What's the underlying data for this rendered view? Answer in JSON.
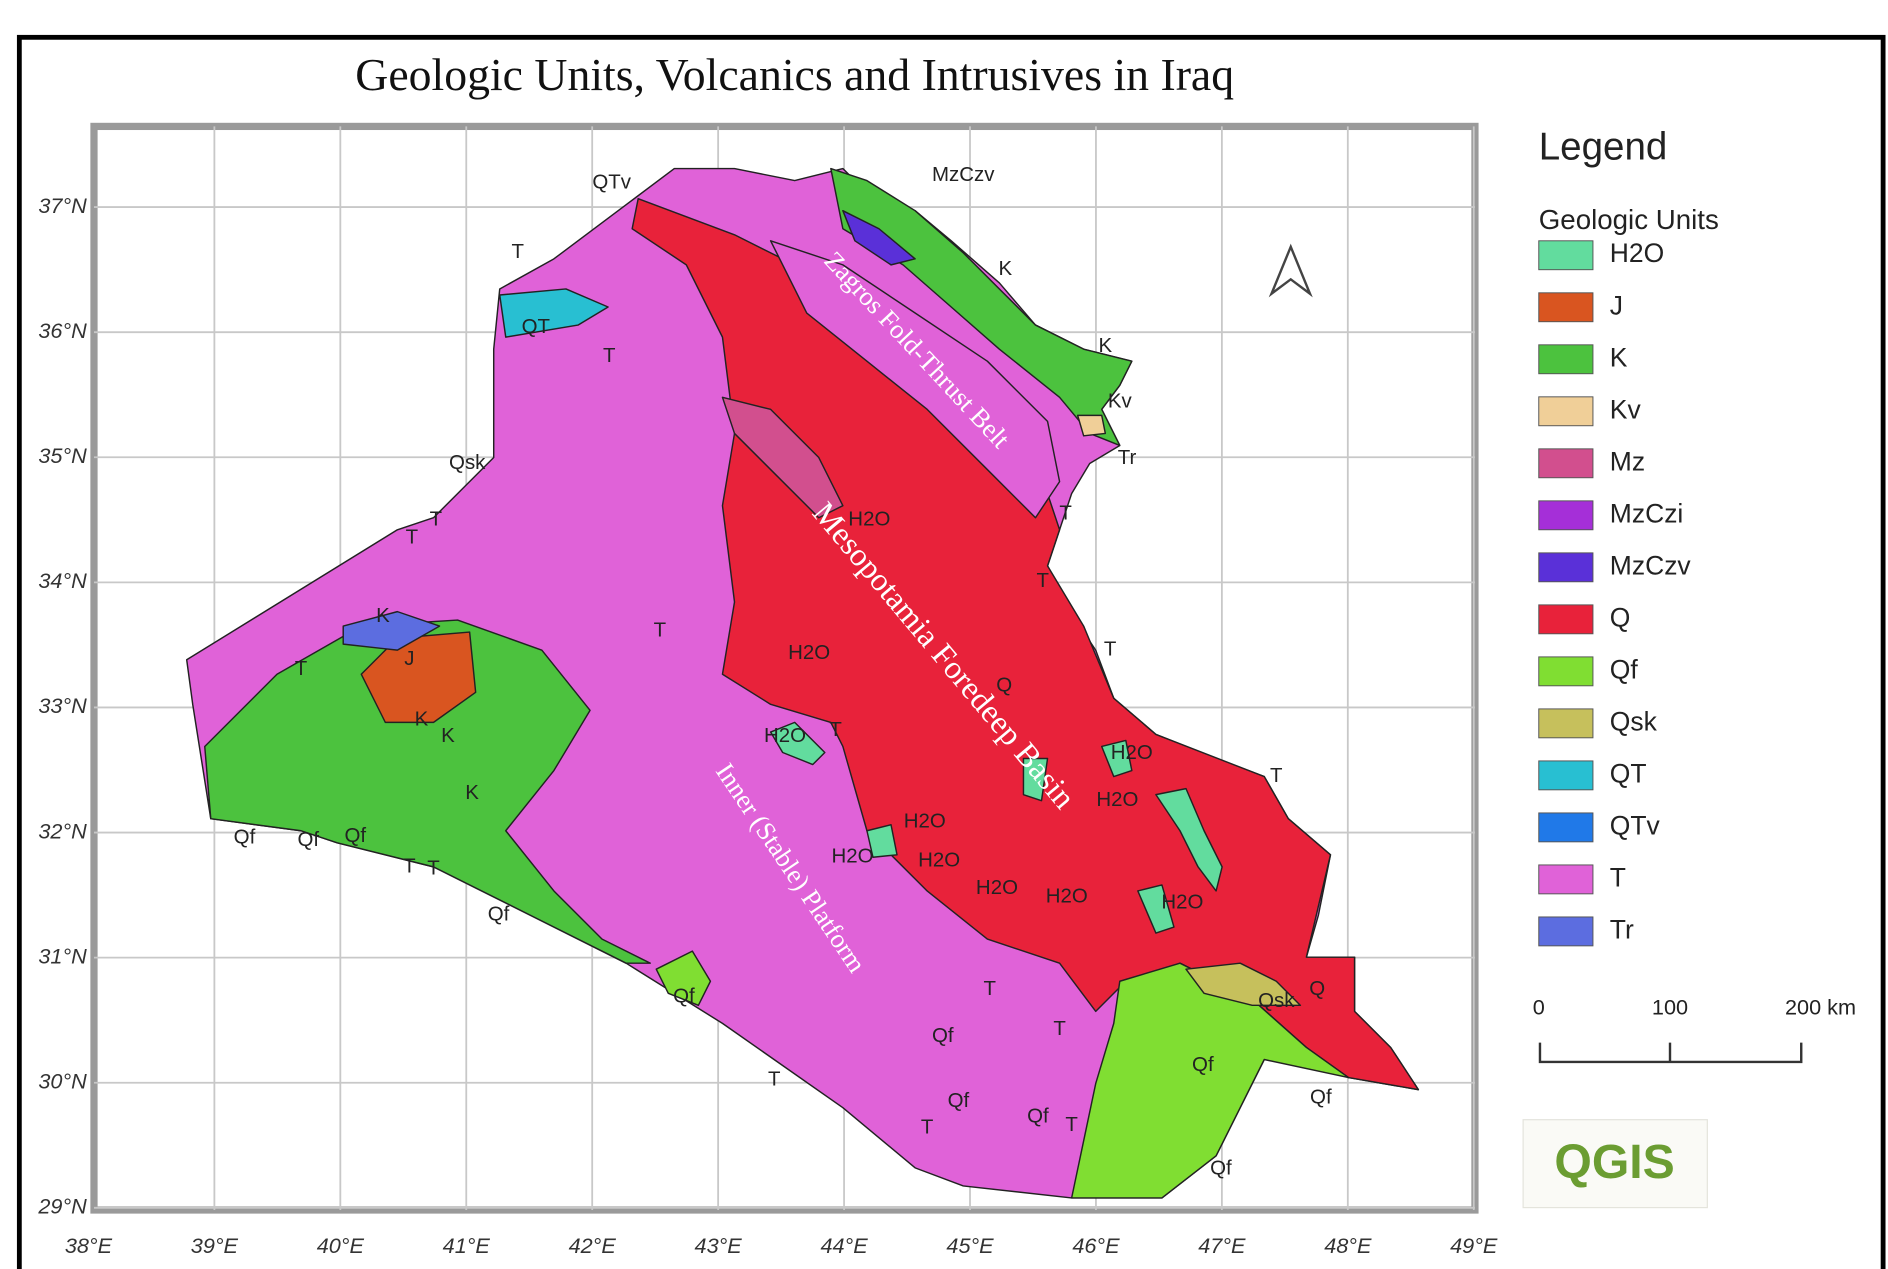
{
  "title": "Geologic Units, Volcanics and Intrusives in Iraq",
  "map": {
    "longitude_ticks": [
      {
        "value": 38,
        "label": "38°E"
      },
      {
        "value": 39,
        "label": "39°E"
      },
      {
        "value": 40,
        "label": "40°E"
      },
      {
        "value": 41,
        "label": "41°E"
      },
      {
        "value": 42,
        "label": "42°E"
      },
      {
        "value": 43,
        "label": "43°E"
      },
      {
        "value": 44,
        "label": "44°E"
      },
      {
        "value": 45,
        "label": "45°E"
      },
      {
        "value": 46,
        "label": "46°E"
      },
      {
        "value": 47,
        "label": "47°E"
      },
      {
        "value": 48,
        "label": "48°E"
      },
      {
        "value": 49,
        "label": "49°E"
      }
    ],
    "latitude_ticks": [
      {
        "value": 29,
        "label": "29°N"
      },
      {
        "value": 30,
        "label": "30°N"
      },
      {
        "value": 31,
        "label": "31°N"
      },
      {
        "value": 32,
        "label": "32°N"
      },
      {
        "value": 33,
        "label": "33°N"
      },
      {
        "value": 34,
        "label": "34°N"
      },
      {
        "value": 35,
        "label": "35°N"
      },
      {
        "value": 36,
        "label": "36°N"
      },
      {
        "value": 37,
        "label": "37°N"
      }
    ],
    "region_labels": [
      "Zagros Fold-Thrust Belt",
      "Mesopotamia Foredeep Basin",
      "Inner (Stable) Platform"
    ],
    "unit_labels": [
      "QTv",
      "MzCzv",
      "T",
      "QT",
      "T",
      "Qsk",
      "T",
      "T",
      "K",
      "K",
      "Kv",
      "Tr",
      "T",
      "T",
      "H2O",
      "T",
      "H2O",
      "Q",
      "T",
      "H2O",
      "T",
      "H2O",
      "H2O",
      "T",
      "H2O",
      "H2O",
      "H2O",
      "H2O",
      "H2O",
      "H2O",
      "K",
      "K",
      "K",
      "J",
      "T",
      "K",
      "Qf",
      "Qf",
      "Qf",
      "T",
      "T",
      "Qf",
      "Qf",
      "Qf",
      "Qf",
      "Qf",
      "Qf",
      "Qf",
      "Qf",
      "Qsk",
      "Q",
      "T",
      "T",
      "T",
      "T",
      "T"
    ]
  },
  "legend": {
    "title": "Legend",
    "subtitle": "Geologic Units",
    "items": [
      {
        "name": "H2O",
        "color": "#62dc9e"
      },
      {
        "name": "J",
        "color": "#d95520"
      },
      {
        "name": "K",
        "color": "#4cc23e"
      },
      {
        "name": "Kv",
        "color": "#f0cf98"
      },
      {
        "name": "Mz",
        "color": "#d24f8e"
      },
      {
        "name": "MzCzi",
        "color": "#a52fd8"
      },
      {
        "name": "MzCzv",
        "color": "#5a30d8"
      },
      {
        "name": "Q",
        "color": "#e8223a"
      },
      {
        "name": "Qf",
        "color": "#80de32"
      },
      {
        "name": "Qsk",
        "color": "#c6c05c"
      },
      {
        "name": "QT",
        "color": "#28bfd2"
      },
      {
        "name": "QTv",
        "color": "#2079e8"
      },
      {
        "name": "T",
        "color": "#e062d8"
      },
      {
        "name": "Tr",
        "color": "#5c6de0"
      }
    ]
  },
  "scale_bar": {
    "labels": [
      "0",
      "100",
      "200 km"
    ]
  },
  "logo": "QGIS"
}
